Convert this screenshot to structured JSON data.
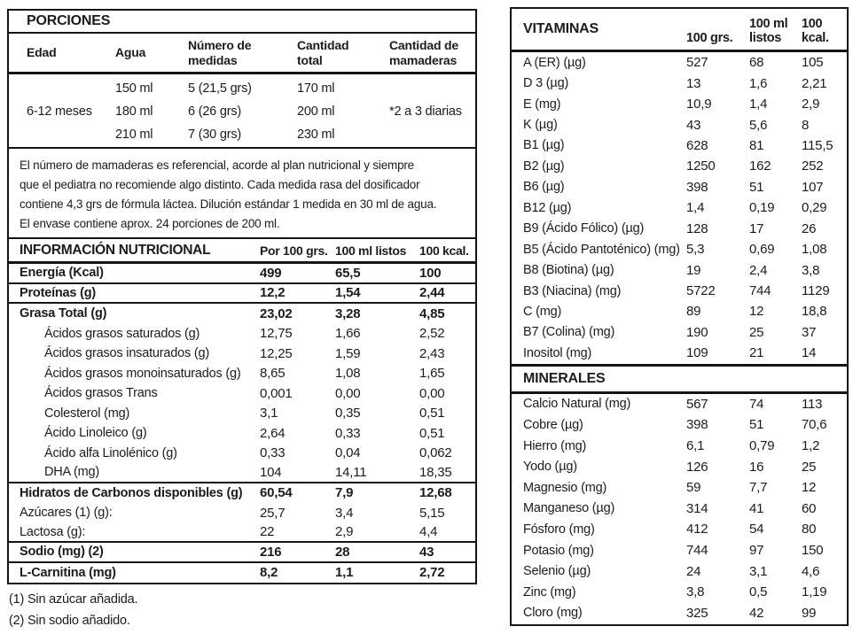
{
  "porciones": {
    "title": "PORCIONES",
    "headers": [
      "Edad",
      "Agua",
      "Número de\nmedidas",
      "Cantidad\ntotal",
      "Cantidad de\nmamaderas"
    ],
    "edad": "6-12 meses",
    "mamaderas": "*2 a 3 diarias",
    "rows": [
      {
        "agua": "150 ml",
        "medidas": "5 (21,5 grs)",
        "total": "170 ml"
      },
      {
        "agua": "180 ml",
        "medidas": "6 (26 grs)",
        "total": "200 ml"
      },
      {
        "agua": "210 ml",
        "medidas": "7 (30 grs)",
        "total": "230 ml"
      }
    ],
    "nota": "El número de mamaderas es referencial, acorde al plan nutricional y siempre\nque el pediatra no recomiende algo distinto. Cada medida rasa del dosificador\ncontiene 4,3 grs de fórmula láctea. Dilución estándar 1 medida en 30 ml de agua.\nEl envase contiene aprox. 24 porciones de 200 ml."
  },
  "nutricional": {
    "title": "INFORMACIÓN NUTRICIONAL",
    "col_headers": [
      "Por 100 grs.",
      "100 ml listos",
      "100 kcal."
    ],
    "rows": [
      {
        "label": "Energía (Kcal)",
        "values": [
          "499",
          "65,5",
          "100"
        ],
        "bold": true,
        "div": true
      },
      {
        "label": "Proteínas (g)",
        "values": [
          "12,2",
          "1,54",
          "2,44"
        ],
        "bold": true,
        "div": true
      },
      {
        "label": "Grasa Total (g)",
        "values": [
          "23,02",
          "3,28",
          "4,85"
        ],
        "bold": true
      },
      {
        "label": "Ácidos grasos saturados (g)",
        "values": [
          "12,75",
          "1,66",
          "2,52"
        ],
        "indent": true
      },
      {
        "label": "Ácidos grasos insaturados (g)",
        "values": [
          "12,25",
          "1,59",
          "2,43"
        ],
        "indent": true
      },
      {
        "label": "Ácidos grasos monoinsaturados (g)",
        "values": [
          "8,65",
          "1,08",
          "1,65"
        ],
        "indent": true
      },
      {
        "label": "Ácidos grasos Trans",
        "values": [
          "0,001",
          "0,00",
          "0,00"
        ],
        "indent": true
      },
      {
        "label": "Colesterol (mg)",
        "values": [
          "3,1",
          "0,35",
          "0,51"
        ],
        "indent": true
      },
      {
        "label": "Ácido Linoleico (g)",
        "values": [
          "2,64",
          "0,33",
          "0,51"
        ],
        "indent": true
      },
      {
        "label": "Ácido alfa Linolénico (g)",
        "values": [
          "0,33",
          "0,04",
          "0,062"
        ],
        "indent": true
      },
      {
        "label": "DHA (mg)",
        "values": [
          "104",
          "14,11",
          "18,35"
        ],
        "indent": true,
        "div": true
      },
      {
        "label": "Hidratos de Carbonos disponibles (g)",
        "values": [
          "60,54",
          "7,9",
          "12,68"
        ],
        "bold": true
      },
      {
        "label": "Azúcares (1) (g):",
        "values": [
          "25,7",
          "3,4",
          "5,15"
        ]
      },
      {
        "label": "Lactosa (g):",
        "values": [
          "22",
          "2,9",
          "4,4"
        ],
        "div": true
      },
      {
        "label": "Sodio (mg) (2)",
        "values": [
          "216",
          "28",
          "43"
        ],
        "bold": true,
        "div": true
      },
      {
        "label": "L-Carnitina (mg)",
        "values": [
          "8,2",
          "1,1",
          "2,72"
        ],
        "bold": true
      }
    ],
    "footnotes": [
      "(1) Sin azúcar añadida.",
      "(2) Sin sodio añadido."
    ]
  },
  "vitaminas": {
    "title": "VITAMINAS",
    "col_headers": [
      "100 grs.",
      "100 ml\nlistos",
      "100\nkcal."
    ],
    "rows": [
      {
        "label": "A (ER) (µg)",
        "values": [
          "527",
          "68",
          "105"
        ]
      },
      {
        "label": "D 3 (µg)",
        "values": [
          "13",
          "1,6",
          "2,21"
        ]
      },
      {
        "label": "E (mg)",
        "values": [
          "10,9",
          "1,4",
          "2,9"
        ]
      },
      {
        "label": "K (µg)",
        "values": [
          "43",
          "5,6",
          "8"
        ]
      },
      {
        "label": "B1 (µg)",
        "values": [
          "628",
          "81",
          "115,5"
        ]
      },
      {
        "label": "B2 (µg)",
        "values": [
          "1250",
          "162",
          "252"
        ]
      },
      {
        "label": "B6 (µg)",
        "values": [
          "398",
          "51",
          "107"
        ]
      },
      {
        "label": "B12 (µg)",
        "values": [
          "1,4",
          "0,19",
          "0,29"
        ]
      },
      {
        "label": "B9 (Ácido Fólico) (µg)",
        "values": [
          "128",
          "17",
          "26"
        ]
      },
      {
        "label": "B5 (Ácido Pantoténico) (mg)",
        "values": [
          "5,3",
          "0,69",
          "1,08"
        ]
      },
      {
        "label": "B8 (Biotina) (µg)",
        "values": [
          "19",
          "2,4",
          "3,8"
        ]
      },
      {
        "label": "B3 (Niacina) (mg)",
        "values": [
          "5722",
          "744",
          "1129"
        ]
      },
      {
        "label": "C (mg)",
        "values": [
          "89",
          "12",
          "18,8"
        ]
      },
      {
        "label": "B7 (Colina) (mg)",
        "values": [
          "190",
          "25",
          "37"
        ]
      },
      {
        "label": "Inositol (mg)",
        "values": [
          "109",
          "21",
          "14"
        ]
      }
    ]
  },
  "minerales": {
    "title": "MINERALES",
    "rows": [
      {
        "label": "Calcio Natural (mg)",
        "values": [
          "567",
          "74",
          "113"
        ]
      },
      {
        "label": "Cobre (µg)",
        "values": [
          "398",
          "51",
          "70,6"
        ]
      },
      {
        "label": "Hierro (mg)",
        "values": [
          "6,1",
          "0,79",
          "1,2"
        ]
      },
      {
        "label": "Yodo (µg)",
        "values": [
          "126",
          "16",
          "25"
        ]
      },
      {
        "label": "Magnesio (mg)",
        "values": [
          "59",
          "7,7",
          "12"
        ]
      },
      {
        "label": "Manganeso (µg)",
        "values": [
          "314",
          "41",
          "60"
        ]
      },
      {
        "label": "Fósforo (mg)",
        "values": [
          "412",
          "54",
          "80"
        ]
      },
      {
        "label": "Potasio (mg)",
        "values": [
          "744",
          "97",
          "150"
        ]
      },
      {
        "label": "Selenio (µg)",
        "values": [
          "24",
          "3,1",
          "4,6"
        ]
      },
      {
        "label": "Zinc (mg)",
        "values": [
          "3,8",
          "0,5",
          "1,19"
        ]
      },
      {
        "label": "Cloro (mg)",
        "values": [
          "325",
          "42",
          "99"
        ]
      }
    ]
  }
}
